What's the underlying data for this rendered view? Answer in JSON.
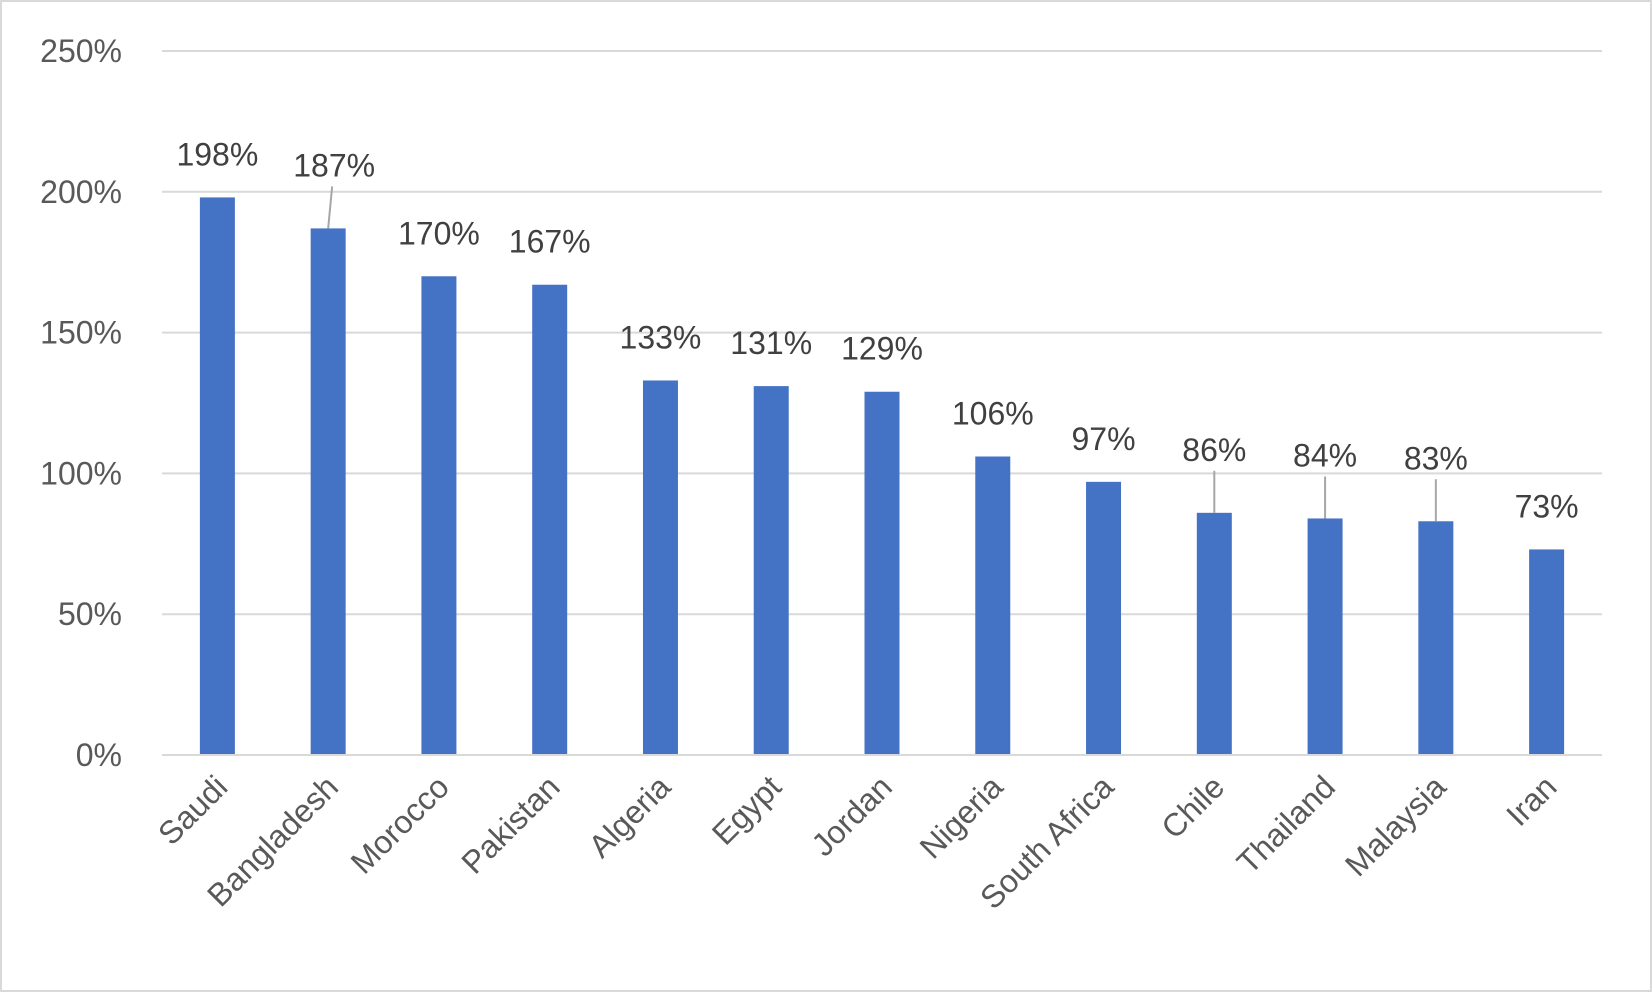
{
  "chart_data": {
    "type": "bar",
    "title": "",
    "xlabel": "",
    "ylabel": "",
    "categories": [
      "Saudi",
      "Bangladesh",
      "Morocco",
      "Pakistan",
      "Algeria",
      "Egypt",
      "Jordan",
      "Nigeria",
      "South Africa",
      "Chile",
      "Thailand",
      "Malaysia",
      "Iran"
    ],
    "values": [
      198,
      187,
      170,
      167,
      133,
      131,
      129,
      106,
      97,
      86,
      84,
      83,
      73
    ],
    "data_labels": [
      "198%",
      "187%",
      "170%",
      "167%",
      "133%",
      "131%",
      "129%",
      "106%",
      "97%",
      "86%",
      "84%",
      "83%",
      "73%"
    ],
    "ylim": [
      0,
      250
    ],
    "yticks": [
      0,
      50,
      100,
      150,
      200,
      250
    ],
    "ytick_labels": [
      "0%",
      "50%",
      "100%",
      "150%",
      "200%",
      "250%"
    ],
    "grid": true,
    "legend": "none",
    "bar_color": "#4472C4"
  }
}
